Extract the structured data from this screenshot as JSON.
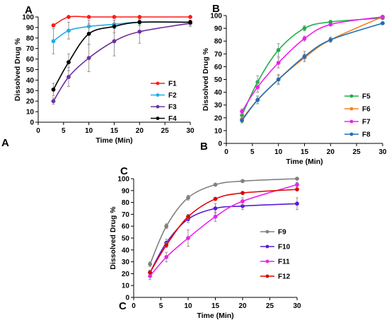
{
  "chart_data": [
    {
      "type": "line",
      "panel_label": "A",
      "corner_label": "A",
      "title": "",
      "xlabel": "Time (Min)",
      "ylabel": "Dissolved Drug %",
      "xlim": [
        0,
        30
      ],
      "ylim": [
        0,
        100
      ],
      "xticks": [
        0,
        5,
        10,
        15,
        20,
        25,
        30
      ],
      "yticks": [
        0,
        10,
        20,
        30,
        40,
        50,
        60,
        70,
        80,
        90,
        100
      ],
      "grid": false,
      "legend_position": "right",
      "x": [
        3,
        6,
        10,
        15,
        20,
        30
      ],
      "series": [
        {
          "name": "F1",
          "color": "#ff1a1a",
          "values": [
            92,
            100,
            100,
            100,
            100,
            100
          ],
          "errors": [
            1,
            1,
            1,
            1,
            1,
            1
          ]
        },
        {
          "name": "F2",
          "color": "#1eaeeb",
          "values": [
            77,
            87,
            91,
            93,
            95,
            95
          ],
          "errors": [
            12,
            8,
            6,
            4,
            3,
            2
          ]
        },
        {
          "name": "F3",
          "color": "#7030a0",
          "values": [
            20,
            43,
            61,
            77,
            86,
            94
          ],
          "errors": [
            3,
            9,
            13,
            14,
            11,
            3
          ]
        },
        {
          "name": "F4",
          "color": "#000000",
          "values": [
            31,
            57,
            84,
            91,
            95,
            95
          ],
          "errors": [
            6,
            8,
            10,
            6,
            3,
            2
          ]
        }
      ]
    },
    {
      "type": "line",
      "panel_label": "B",
      "corner_label": "B",
      "title": "",
      "xlabel": "Time (Min)",
      "ylabel": "Dissolved Drug %",
      "xlim": [
        0,
        30
      ],
      "ylim": [
        0,
        100
      ],
      "xticks": [
        0,
        5,
        10,
        15,
        20,
        25,
        30
      ],
      "yticks": [
        0,
        10,
        20,
        30,
        40,
        50,
        60,
        70,
        80,
        90,
        100
      ],
      "grid": false,
      "legend_position": "right",
      "x": [
        3,
        6,
        10,
        15,
        20,
        30
      ],
      "series": [
        {
          "name": "F5",
          "color": "#1bb04b",
          "values": [
            22,
            48,
            73,
            90,
            95,
            98
          ],
          "errors": [
            3,
            5,
            5,
            2,
            1,
            1
          ]
        },
        {
          "name": "F6",
          "color": "#f58220",
          "values": [
            19,
            34,
            50,
            67,
            81,
            99
          ],
          "errors": [
            2,
            3,
            3,
            3,
            2,
            1
          ]
        },
        {
          "name": "F7",
          "color": "#ee20ee",
          "values": [
            25,
            44,
            63,
            82,
            93,
            99
          ],
          "errors": [
            2,
            4,
            4,
            2,
            1,
            1
          ]
        },
        {
          "name": "F8",
          "color": "#1f6eb4",
          "values": [
            18,
            34,
            50,
            68,
            81,
            94
          ],
          "errors": [
            2,
            3,
            4,
            4,
            2,
            1
          ]
        }
      ]
    },
    {
      "type": "line",
      "panel_label": "C",
      "corner_label": "C",
      "title": "",
      "xlabel": "Time (Min)",
      "ylabel": "Dissolved Drug %",
      "xlim": [
        0,
        30
      ],
      "ylim": [
        0,
        100
      ],
      "xticks": [
        0,
        5,
        10,
        15,
        20,
        25,
        30
      ],
      "yticks": [
        0,
        10,
        20,
        30,
        40,
        50,
        60,
        70,
        80,
        90,
        100
      ],
      "grid": false,
      "legend_position": "right",
      "x": [
        3,
        6,
        10,
        15,
        20,
        30
      ],
      "series": [
        {
          "name": "F9",
          "color": "#808080",
          "values": [
            28,
            60,
            84,
            95,
            98,
            100
          ],
          "errors": [
            2,
            2,
            2,
            1,
            1,
            1
          ]
        },
        {
          "name": "F10",
          "color": "#5b19d6",
          "values": [
            21,
            46,
            66,
            75,
            77,
            79
          ],
          "errors": [
            2,
            3,
            3,
            4,
            3,
            5
          ]
        },
        {
          "name": "F11",
          "color": "#ee20ee",
          "values": [
            18,
            34,
            50,
            68,
            81,
            95
          ],
          "errors": [
            3,
            4,
            7,
            4,
            3,
            2
          ]
        },
        {
          "name": "F12",
          "color": "#e00000",
          "values": [
            21,
            44,
            68,
            83,
            88,
            91
          ],
          "errors": [
            2,
            2,
            2,
            1,
            1,
            1
          ]
        }
      ]
    }
  ]
}
